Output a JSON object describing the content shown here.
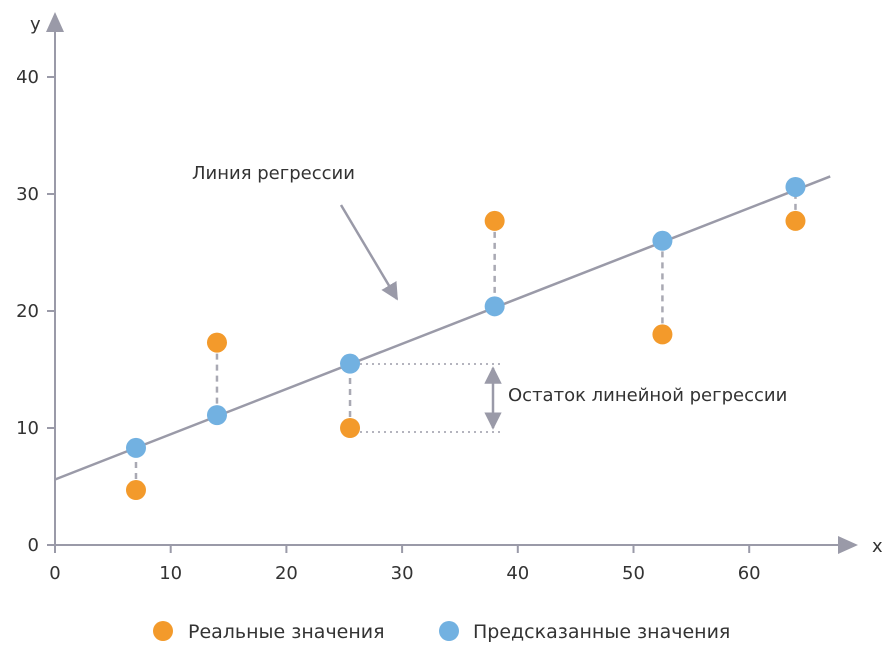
{
  "chart_data": {
    "type": "scatter",
    "xlabel": "x",
    "ylabel": "y",
    "xlim": [
      0,
      68
    ],
    "ylim": [
      0,
      43
    ],
    "x_ticks": [
      0,
      10,
      20,
      30,
      40,
      50,
      60
    ],
    "y_ticks": [
      0,
      10,
      20,
      30,
      40
    ],
    "series": [
      {
        "name": "Реальные значения",
        "color": "#f39a2b",
        "points": [
          {
            "x": 7,
            "y": 4.7
          },
          {
            "x": 14,
            "y": 17.3
          },
          {
            "x": 25.5,
            "y": 10
          },
          {
            "x": 38,
            "y": 27.7
          },
          {
            "x": 52.5,
            "y": 18
          },
          {
            "x": 64,
            "y": 27.7
          }
        ]
      },
      {
        "name": "Предсказанные значения",
        "color": "#72b1e1",
        "points": [
          {
            "x": 7,
            "y": 8.3
          },
          {
            "x": 14,
            "y": 11.1
          },
          {
            "x": 25.5,
            "y": 15.5
          },
          {
            "x": 38,
            "y": 20.4
          },
          {
            "x": 52.5,
            "y": 26
          },
          {
            "x": 64,
            "y": 30.6
          }
        ]
      }
    ],
    "regression_line": {
      "from": {
        "x": 0,
        "y": 5.6
      },
      "to": {
        "x": 67,
        "y": 31.5
      },
      "color": "#9a9aa8"
    },
    "annotations": {
      "regression_label": "Линия регрессии",
      "residual_label": "Остаток линейной регрессии"
    },
    "legend_position": "bottom-center",
    "grid": false,
    "axis_color": "#9a9aa8"
  }
}
